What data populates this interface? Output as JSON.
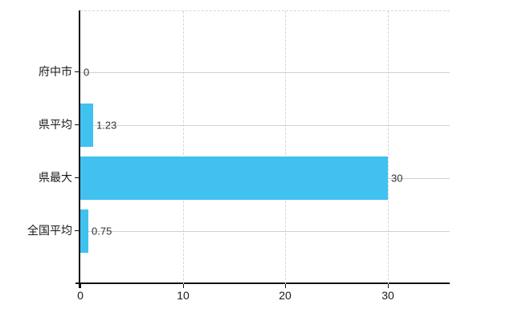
{
  "chart_data": {
    "type": "bar",
    "orientation": "horizontal",
    "title": "",
    "xlabel": "",
    "ylabel": "",
    "categories": [
      "府中市",
      "県平均",
      "県最大",
      "全国平均"
    ],
    "values": [
      0,
      1.23,
      30,
      0.75
    ],
    "value_labels": [
      "0",
      "1.23",
      "30",
      "0.75"
    ],
    "x_tick_labels": [
      "0",
      "10",
      "20",
      "30"
    ],
    "x_tick_values": [
      0,
      10,
      20,
      30
    ],
    "xlim": [
      0,
      36
    ],
    "grid": true,
    "legend": false,
    "colors": {
      "bar": "#41c1f0",
      "axis": "#111111",
      "h_gridline": "#ccd4cc",
      "v_gridline": "#d6d6d6",
      "label_text": "#1a1a1a",
      "value_text": "#333333",
      "background": "#ffffff"
    }
  }
}
